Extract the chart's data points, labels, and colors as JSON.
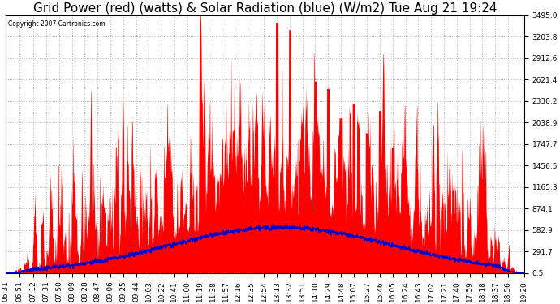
{
  "title": "Grid Power (red) (watts) & Solar Radiation (blue) (W/m2) Tue Aug 21 19:24",
  "copyright": "Copyright 2007 Cartronics.com",
  "yticks": [
    0.5,
    291.7,
    582.9,
    874.1,
    1165.3,
    1456.5,
    1747.7,
    2038.9,
    2330.2,
    2621.4,
    2912.6,
    3203.8,
    3495.0
  ],
  "xtick_labels": [
    "06:31",
    "06:51",
    "07:12",
    "07:31",
    "07:50",
    "08:09",
    "08:28",
    "08:47",
    "09:06",
    "09:25",
    "09:44",
    "10:03",
    "10:22",
    "10:41",
    "11:00",
    "11:19",
    "11:38",
    "11:57",
    "12:16",
    "12:35",
    "12:54",
    "13:13",
    "13:32",
    "13:51",
    "14:10",
    "14:29",
    "14:48",
    "15:07",
    "15:27",
    "15:46",
    "16:05",
    "16:24",
    "16:43",
    "17:02",
    "17:21",
    "17:40",
    "17:59",
    "18:18",
    "18:37",
    "18:56",
    "19:20"
  ],
  "ymax": 3495.0,
  "ymin": 0.5,
  "bg_color": "#ffffff",
  "plot_bg": "#ffffff",
  "grid_color": "#aaaaaa",
  "red_color": "#ff0000",
  "blue_color": "#0000cc",
  "title_fontsize": 11,
  "tick_fontsize": 6.5
}
